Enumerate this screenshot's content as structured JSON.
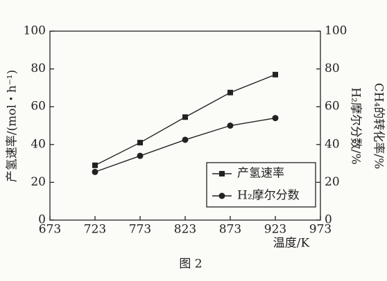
{
  "chart_data": {
    "type": "line",
    "x": [
      723,
      773,
      823,
      873,
      923
    ],
    "series": [
      {
        "name": "产氢速率",
        "color": "#222222",
        "marker": "square",
        "values": [
          29,
          41,
          54.5,
          67.5,
          77
        ]
      },
      {
        "name": "H₂摩尔分数",
        "color": "#222222",
        "marker": "circle",
        "axis": "y2",
        "values": [
          25.5,
          34,
          42.5,
          50,
          54
        ]
      }
    ],
    "xlim": [
      673,
      973
    ],
    "xticks": [
      673,
      723,
      773,
      823,
      873,
      923,
      973
    ],
    "ylim": [
      0,
      100
    ],
    "yticks": [
      0,
      20,
      40,
      60,
      80,
      100
    ],
    "y2lim": [
      0,
      100
    ],
    "y2ticks": [
      0,
      20,
      40,
      60,
      80,
      100
    ],
    "xlabel": "温度/K",
    "ylabel": "产氢速率/(mol・h⁻¹)",
    "y2label": [
      "H₂摩尔分数/%",
      "CH₄的转化率/%"
    ],
    "caption": "图 2",
    "legend": "lower-right",
    "grid": false
  }
}
